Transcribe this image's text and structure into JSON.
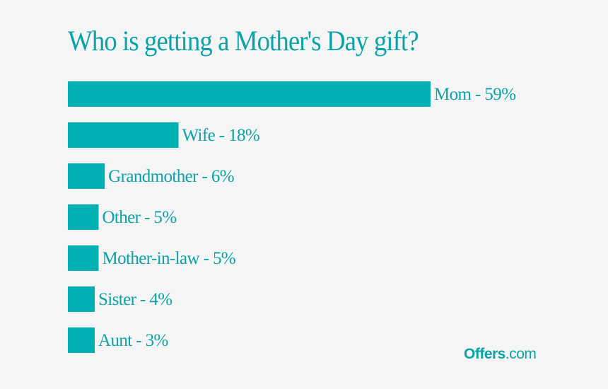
{
  "chart_data": {
    "type": "bar",
    "orientation": "horizontal",
    "title": "Who is getting a Mother's Day gift?",
    "categories": [
      "Mom",
      "Wife",
      "Grandmother",
      "Other",
      "Mother-in-law",
      "Sister",
      "Aunt"
    ],
    "values": [
      59,
      18,
      6,
      5,
      5,
      4,
      3
    ],
    "labels": [
      "Mom - 59%",
      "Wife - 18%",
      "Grandmother - 6%",
      "Other - 5%",
      "Mother-in-law - 5%",
      "Sister - 4%",
      "Aunt - 3%"
    ],
    "unit": "%",
    "xlim": [
      0,
      59
    ],
    "grid": false,
    "legend": "none"
  },
  "colors": {
    "bar": "#00b0b3",
    "label": "#0aa3a8",
    "title": "#0aa3a8",
    "background": "#f5f5f5"
  },
  "logo": {
    "brand": "Offers",
    "tld": ".com"
  }
}
